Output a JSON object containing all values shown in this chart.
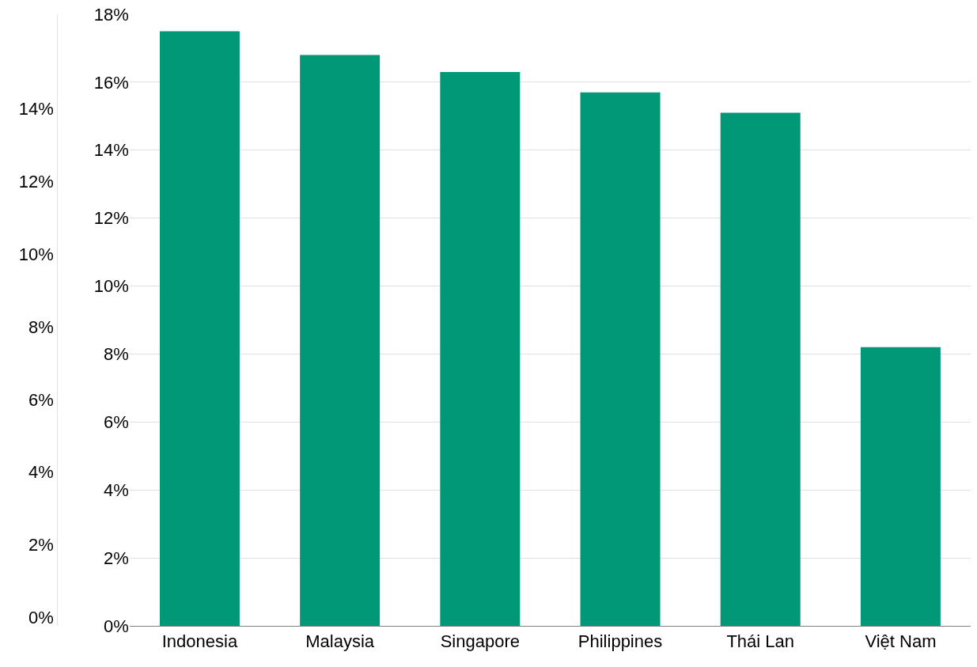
{
  "chart_data": {
    "type": "bar",
    "categories": [
      "Indonesia",
      "Malaysia",
      "Singapore",
      "Philippines",
      "Thái Lan",
      "Việt Nam"
    ],
    "values": [
      17.5,
      16.8,
      16.3,
      15.7,
      15.1,
      8.2
    ],
    "color": "#009877",
    "ylim": [
      0,
      18
    ],
    "yticks": [
      {
        "value": 0,
        "label": "0%"
      },
      {
        "value": 2,
        "label": "2%"
      },
      {
        "value": 4,
        "label": "4%"
      },
      {
        "value": 6,
        "label": "6%"
      },
      {
        "value": 8,
        "label": "8%"
      },
      {
        "value": 10,
        "label": "10%"
      },
      {
        "value": 12,
        "label": "12%"
      },
      {
        "value": 14,
        "label": "14%"
      },
      {
        "value": 16,
        "label": "16%"
      },
      {
        "value": 18,
        "label": "18%"
      }
    ],
    "y2lim": [
      -0.23,
      16.6
    ],
    "y2ticks": [
      {
        "value": 0,
        "label": "0%"
      },
      {
        "value": 2,
        "label": "2%"
      },
      {
        "value": 4,
        "label": "4%"
      },
      {
        "value": 6,
        "label": "6%"
      },
      {
        "value": 8,
        "label": "8%"
      },
      {
        "value": 10,
        "label": "10%"
      },
      {
        "value": 12,
        "label": "12%"
      },
      {
        "value": 14,
        "label": "14%"
      }
    ],
    "grid": "y",
    "legend": false
  }
}
